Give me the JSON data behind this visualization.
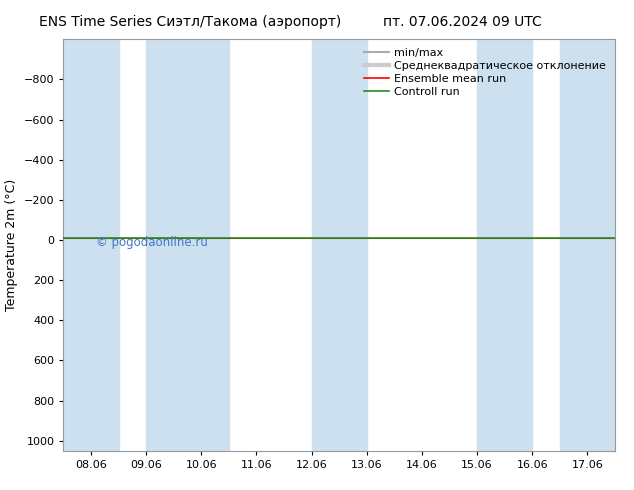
{
  "title_left": "ENS Time Series Сиэтл/Такома (аэропорт)",
  "title_right": "пт. 07.06.2024 09 UTC",
  "ylabel": "Temperature 2m (°C)",
  "ylim_bottom": -1000,
  "ylim_top": 1050,
  "yticks": [
    -800,
    -600,
    -400,
    -200,
    0,
    200,
    400,
    600,
    800,
    1000
  ],
  "xtick_labels": [
    "08.06",
    "09.06",
    "10.06",
    "11.06",
    "12.06",
    "13.06",
    "14.06",
    "15.06",
    "16.06",
    "17.06"
  ],
  "xlim_left": 7.5,
  "xlim_right": 17.5,
  "x_ticks": [
    8.0,
    9.0,
    10.0,
    11.0,
    12.0,
    13.0,
    14.0,
    15.0,
    16.0,
    17.0
  ],
  "background_color": "#ffffff",
  "plot_bg_color": "#ffffff",
  "band_color": "#cce0f0",
  "shade_bands": [
    [
      7.5,
      8.5
    ],
    [
      9.0,
      10.5
    ],
    [
      12.0,
      13.0
    ],
    [
      15.0,
      16.0
    ],
    [
      16.5,
      17.5
    ]
  ],
  "green_line_y": -10,
  "red_line_y": -10,
  "legend_labels": [
    "min/max",
    "Среднеквадратическое отклонение",
    "Ensemble mean run",
    "Controll run"
  ],
  "legend_line_colors": [
    "#aaaaaa",
    "#cccccc",
    "#ff0000",
    "#228b22"
  ],
  "watermark": "© pogodaonline.ru",
  "watermark_color": "#4477cc",
  "title_fontsize": 10,
  "tick_fontsize": 8,
  "ylabel_fontsize": 9,
  "legend_fontsize": 8
}
